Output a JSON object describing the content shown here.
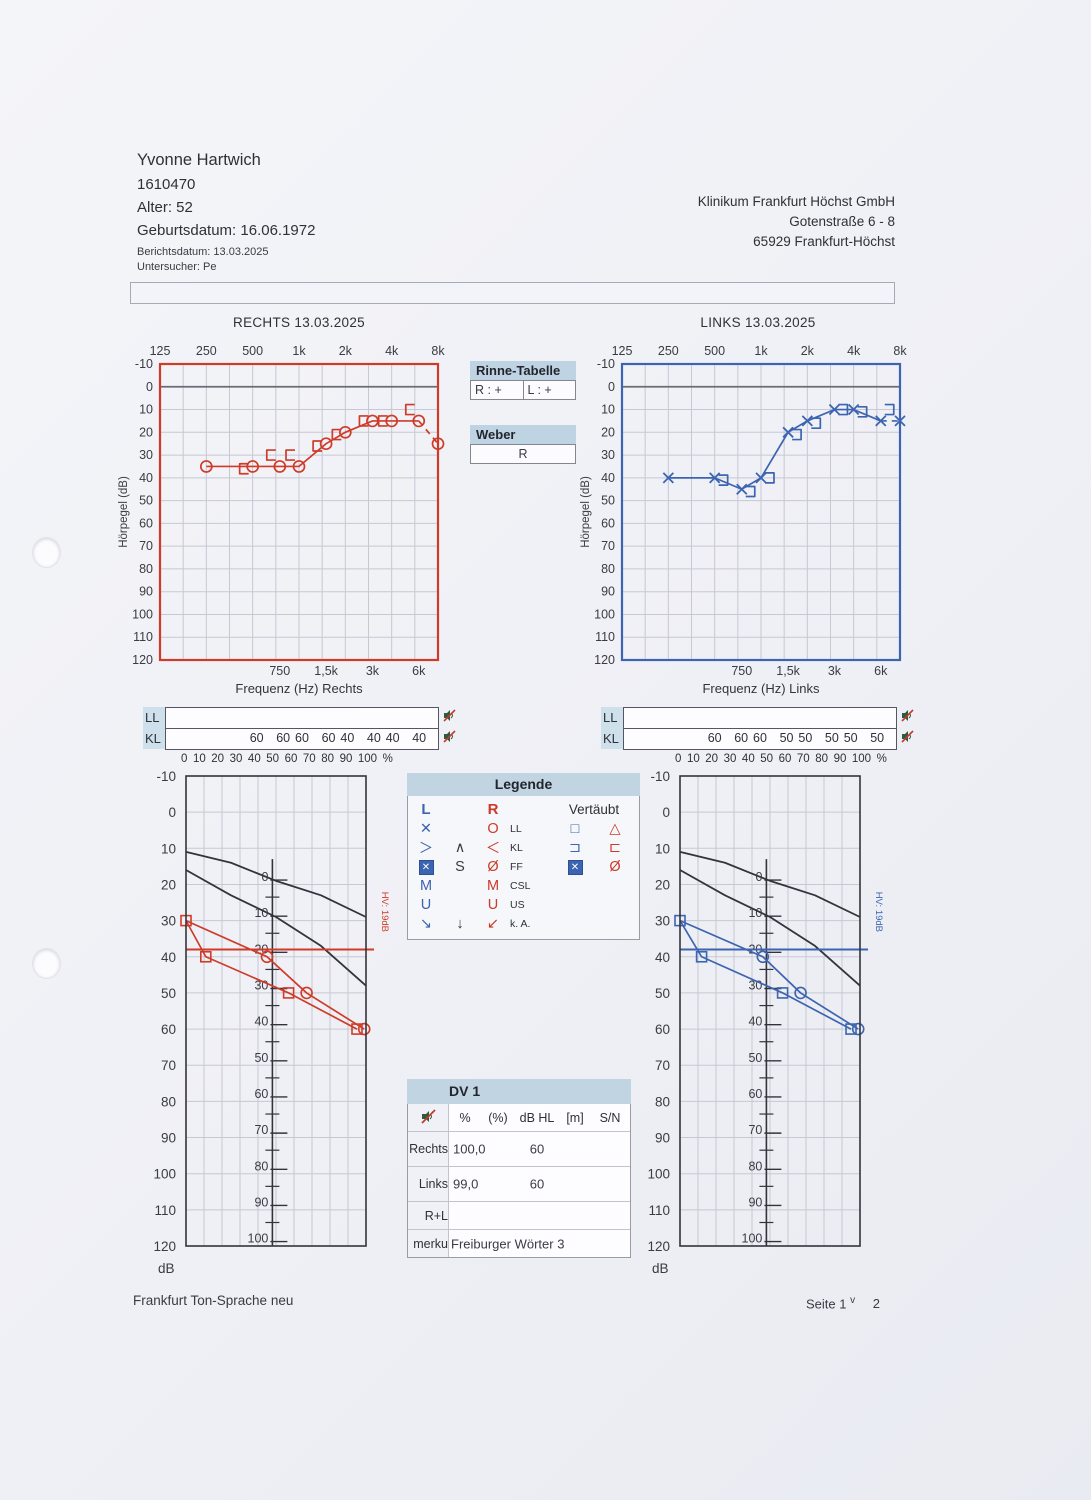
{
  "header": {
    "patient": {
      "name": "Yvonne Hartwich",
      "id": "1610470",
      "age": "Alter: 52",
      "birth": "Geburtsdatum: 16.06.1972",
      "report_date": "Berichtsdatum: 13.03.2025",
      "examiner": "Untersucher: Pe"
    },
    "clinic": {
      "line1": "Klinikum Frankfurt Höchst GmbH",
      "line2": "Gotenstraße 6 - 8",
      "line3": "65929 Frankfurt-Höchst"
    }
  },
  "rinne": {
    "title": "Rinne-Tabelle",
    "r": "R :   +",
    "l": "L :   +"
  },
  "weber": {
    "title": "Weber",
    "value": "R"
  },
  "masking": {
    "freqs": [
      500,
      750,
      1000,
      1500,
      2000,
      3000,
      4000,
      6000
    ],
    "right": {
      "ll_label": "LL",
      "kl_label": "KL",
      "ll_values": [],
      "kl_values": [
        "60",
        "60",
        "60",
        "60",
        "40",
        "40",
        "40",
        "40"
      ]
    },
    "left": {
      "ll_label": "LL",
      "kl_label": "KL",
      "ll_values": [],
      "kl_values": [
        "60",
        "60",
        "60",
        "50",
        "50",
        "50",
        "50",
        "50"
      ]
    }
  },
  "percent_scale": [
    "0",
    "10",
    "20",
    "30",
    "40",
    "50",
    "60",
    "70",
    "80",
    "90",
    "100",
    "%"
  ],
  "legend": {
    "title": "Legende",
    "col_l": "L",
    "col_r": "R",
    "col_masked": "Vertäubt",
    "rows": [
      {
        "l": "✕",
        "mid": "",
        "r": "O",
        "label": "LL",
        "ml": "□",
        "mr": "△"
      },
      {
        "l": "＞",
        "mid": "∧",
        "r": "＜",
        "label": "KL",
        "ml": "⊐",
        "mr": "⊏"
      },
      {
        "l": "✕",
        "mid": "S",
        "r": "Ø",
        "label": "FF",
        "ml": "✕",
        "mr": "Ø"
      },
      {
        "l": "M",
        "mid": "",
        "r": "M",
        "label": "CSL",
        "ml": "",
        "mr": ""
      },
      {
        "l": "U",
        "mid": "",
        "r": "U",
        "label": "US",
        "ml": "",
        "mr": ""
      },
      {
        "l": "↘",
        "mid": "↓",
        "r": "↙",
        "label": "k. A.",
        "ml": "",
        "mr": ""
      }
    ]
  },
  "dv": {
    "title": "DV 1",
    "cols": [
      "%",
      "(%)",
      "dB HL",
      "[m]",
      "S/N"
    ],
    "rows": [
      {
        "label": "Rechts",
        "pct": "100,0",
        "db": "60"
      },
      {
        "label": "Links",
        "pct": "99,0",
        "db": "60"
      },
      {
        "label": "R+L",
        "pct": "",
        "db": ""
      }
    ],
    "remark_label": "merku",
    "remark_value": "Freiburger Wörter 3"
  },
  "footer": {
    "left": "Frankfurt Ton-Sprache neu",
    "page_word": "Seite",
    "page_num": "1",
    "page_sep": "v",
    "page_total": "2"
  },
  "chart_data": [
    {
      "id": "tone-right",
      "type": "line",
      "title": "RECHTS 13.03.2025",
      "color": "#cf3b28",
      "xlabel": "Frequenz (Hz) Rechts",
      "ylabel": "Hörpegel (dB)",
      "ylim": [
        -10,
        120
      ],
      "grid": true,
      "top_freqs": [
        125,
        250,
        500,
        1000,
        2000,
        4000,
        8000
      ],
      "top_ticks": [
        "125",
        "250",
        "500",
        "1k",
        "2k",
        "4k",
        "8k"
      ],
      "bottom_freqs": [
        750,
        1500,
        3000,
        6000
      ],
      "bottom_ticks": [
        "750",
        "1,5k",
        "3k",
        "6k"
      ],
      "y_ticks": [
        -10,
        0,
        10,
        20,
        30,
        40,
        50,
        60,
        70,
        80,
        90,
        100,
        110,
        120
      ],
      "series": [
        {
          "name": "Luftleitung rechts (O)",
          "marker": "circle",
          "dx": 0,
          "dashed_last": true,
          "points": [
            [
              250,
              35
            ],
            [
              500,
              35
            ],
            [
              750,
              35
            ],
            [
              1000,
              35
            ],
            [
              1500,
              25
            ],
            [
              2000,
              20
            ],
            [
              3000,
              15
            ],
            [
              4000,
              15
            ],
            [
              6000,
              15
            ],
            [
              8000,
              25
            ]
          ]
        },
        {
          "name": "Knochenleitung vertäubt rechts (⊏)",
          "marker": "bracket-right",
          "dx": -9,
          "line": false,
          "points": [
            [
              500,
              36
            ],
            [
              750,
              30
            ],
            [
              1000,
              30
            ],
            [
              1500,
              26
            ],
            [
              2000,
              21
            ],
            [
              3000,
              15
            ],
            [
              4000,
              15
            ],
            [
              6000,
              10
            ]
          ]
        }
      ]
    },
    {
      "id": "tone-left",
      "type": "line",
      "title": "LINKS 13.03.2025",
      "color": "#3c64b0",
      "xlabel": "Frequenz (Hz) Links",
      "ylabel": "Hörpegel (dB)",
      "ylim": [
        -10,
        120
      ],
      "grid": true,
      "top_freqs": [
        125,
        250,
        500,
        1000,
        2000,
        4000,
        8000
      ],
      "top_ticks": [
        "125",
        "250",
        "500",
        "1k",
        "2k",
        "4k",
        "8k"
      ],
      "bottom_freqs": [
        750,
        1500,
        3000,
        6000
      ],
      "bottom_ticks": [
        "750",
        "1,5k",
        "3k",
        "6k"
      ],
      "y_ticks": [
        -10,
        0,
        10,
        20,
        30,
        40,
        50,
        60,
        70,
        80,
        90,
        100,
        110,
        120
      ],
      "series": [
        {
          "name": "Luftleitung links (X)",
          "marker": "x",
          "dx": 0,
          "dashed_last": true,
          "points": [
            [
              250,
              40
            ],
            [
              500,
              40
            ],
            [
              750,
              45
            ],
            [
              1000,
              40
            ],
            [
              1500,
              20
            ],
            [
              2000,
              15
            ],
            [
              3000,
              10
            ],
            [
              4000,
              10
            ],
            [
              6000,
              15
            ],
            [
              8000,
              15
            ]
          ]
        },
        {
          "name": "Knochenleitung vertäubt links (⊐)",
          "marker": "bracket-left",
          "dx": 9,
          "line": false,
          "points": [
            [
              500,
              41
            ],
            [
              750,
              46
            ],
            [
              1000,
              40
            ],
            [
              1500,
              21
            ],
            [
              2000,
              16
            ],
            [
              3000,
              10
            ],
            [
              4000,
              11
            ],
            [
              6000,
              10
            ]
          ]
        }
      ]
    },
    {
      "id": "speech-right",
      "type": "speech",
      "color": "#cf3b28",
      "ylabel_unit": "dB",
      "hv_db": 38,
      "hv_label": "HV: 19dB",
      "y_ticks": [
        -10,
        0,
        10,
        20,
        30,
        40,
        50,
        60,
        70,
        80,
        90,
        100,
        110,
        120
      ],
      "inner_ticks": [
        0,
        10,
        20,
        30,
        40,
        50,
        60,
        70,
        80,
        90,
        100
      ],
      "inner_offset_db": 18.5,
      "ref_curves": [
        [
          [
            0,
            11
          ],
          [
            25,
            14
          ],
          [
            50,
            19
          ],
          [
            75,
            23
          ],
          [
            100,
            29
          ]
        ],
        [
          [
            0,
            16
          ],
          [
            25,
            23
          ],
          [
            50,
            29
          ],
          [
            75,
            37
          ],
          [
            100,
            48
          ]
        ]
      ],
      "square_line": [
        [
          0,
          30
        ],
        [
          11,
          40
        ],
        [
          57,
          50
        ],
        [
          95,
          60
        ]
      ],
      "circle_line": [
        [
          0,
          30
        ],
        [
          45,
          40
        ],
        [
          67,
          50
        ],
        [
          99,
          60
        ]
      ]
    },
    {
      "id": "speech-left",
      "type": "speech",
      "color": "#3c64b0",
      "ylabel_unit": "dB",
      "hv_db": 38,
      "hv_label": "HV: 19dB",
      "y_ticks": [
        -10,
        0,
        10,
        20,
        30,
        40,
        50,
        60,
        70,
        80,
        90,
        100,
        110,
        120
      ],
      "inner_ticks": [
        0,
        10,
        20,
        30,
        40,
        50,
        60,
        70,
        80,
        90,
        100
      ],
      "inner_offset_db": 18.5,
      "ref_curves": [
        [
          [
            0,
            11
          ],
          [
            25,
            14
          ],
          [
            50,
            19
          ],
          [
            75,
            23
          ],
          [
            100,
            29
          ]
        ],
        [
          [
            0,
            16
          ],
          [
            25,
            23
          ],
          [
            50,
            29
          ],
          [
            75,
            37
          ],
          [
            100,
            48
          ]
        ]
      ],
      "square_line": [
        [
          0,
          30
        ],
        [
          12,
          40
        ],
        [
          57,
          50
        ],
        [
          95,
          60
        ]
      ],
      "circle_line": [
        [
          0,
          30
        ],
        [
          46,
          40
        ],
        [
          67,
          50
        ],
        [
          99,
          60
        ]
      ]
    }
  ]
}
